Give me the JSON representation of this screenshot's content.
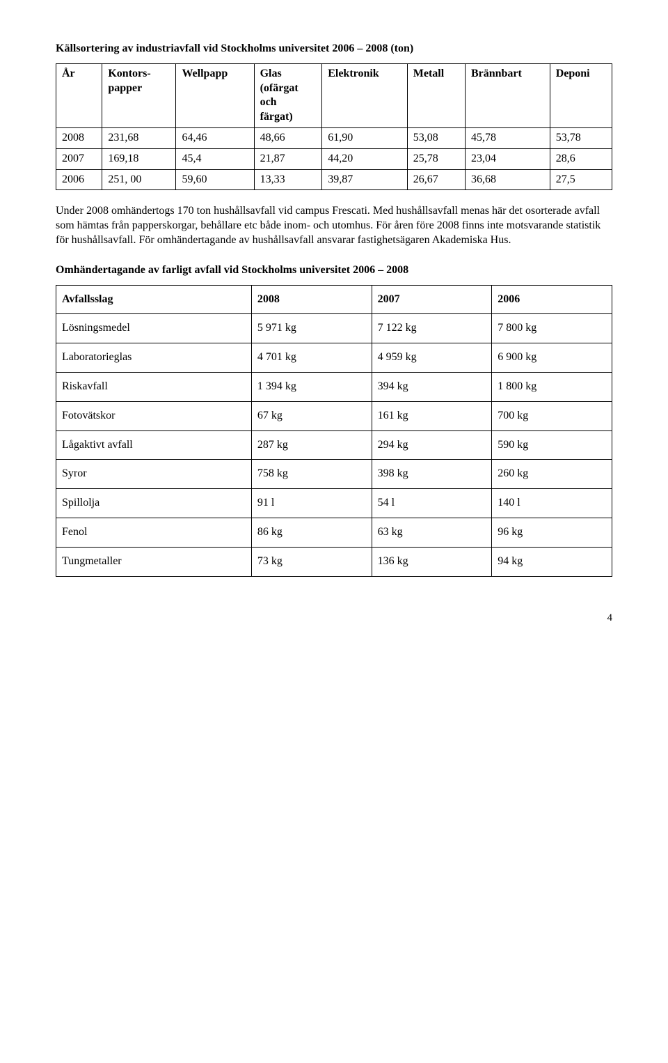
{
  "heading1": "Källsortering av industriavfall vid Stockholms universitet  2006 – 2008 (ton)",
  "table1": {
    "headers": [
      "År",
      "Kontors-\npapper",
      "Wellpapp",
      "Glas\n(ofärgat\noch\nfärgat)",
      "Elektronik",
      "Metall",
      "Brännbart",
      "Deponi"
    ],
    "rows": [
      [
        "2008",
        "231,68",
        "64,46",
        "48,66",
        "61,90",
        "53,08",
        "45,78",
        "53,78"
      ],
      [
        "2007",
        "169,18",
        "45,4",
        "21,87",
        "44,20",
        "25,78",
        "23,04",
        "28,6"
      ],
      [
        "2006",
        "251, 00",
        "59,60",
        "13,33",
        "39,87",
        "26,67",
        "36,68",
        "27,5"
      ]
    ]
  },
  "paragraph": "Under 2008 omhändertogs 170 ton hushållsavfall vid campus Frescati. Med hushållsavfall menas här det osorterade avfall som hämtas från papperskorgar, behållare etc både inom- och utomhus. För åren före 2008 finns inte motsvarande statistik för hushållsavfall. För omhändertagande av hushållsavfall ansvarar fastighetsägaren Akademiska Hus.",
  "heading2": "Omhändertagande av farligt avfall vid Stockholms universitet 2006 – 2008",
  "table2": {
    "headers": [
      "Avfallsslag",
      "2008",
      "2007",
      "2006"
    ],
    "rows": [
      [
        "Lösningsmedel",
        "5 971 kg",
        "7 122 kg",
        "7 800 kg"
      ],
      [
        "Laboratorieglas",
        "4 701 kg",
        "4 959 kg",
        "6 900 kg"
      ],
      [
        "Riskavfall",
        "1 394 kg",
        "394 kg",
        "1 800 kg"
      ],
      [
        "Fotovätskor",
        "67 kg",
        "161 kg",
        "700 kg"
      ],
      [
        "Lågaktivt avfall",
        "287 kg",
        "294 kg",
        "590 kg"
      ],
      [
        "Syror",
        "758 kg",
        "398 kg",
        "260 kg"
      ],
      [
        "Spillolja",
        "91 l",
        "54 l",
        "140 l"
      ],
      [
        "Fenol",
        "86 kg",
        "63 kg",
        "96 kg"
      ],
      [
        "Tungmetaller",
        "73 kg",
        "136 kg",
        "94 kg"
      ]
    ]
  },
  "pageNumber": "4"
}
